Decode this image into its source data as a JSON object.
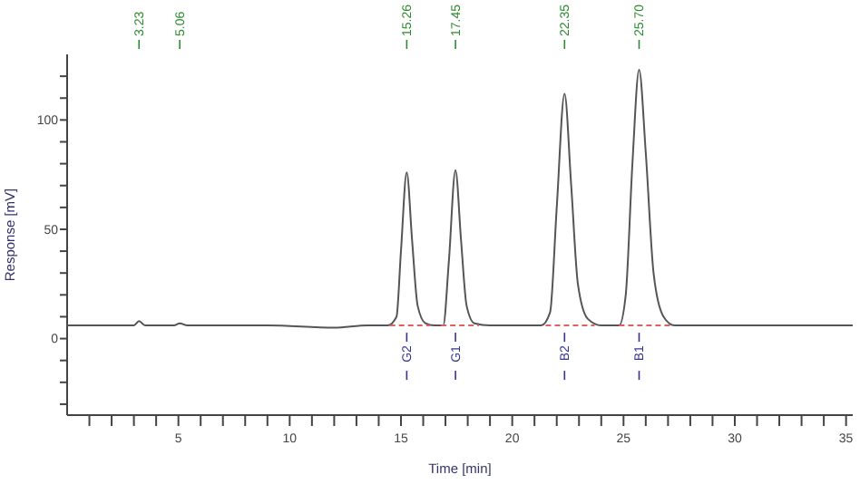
{
  "chart_data": {
    "type": "line",
    "xlabel": "Time [min]",
    "ylabel": "Response [mV]",
    "xlim": [
      0,
      35.3
    ],
    "ylim": [
      -35,
      130
    ],
    "xticks": [
      {
        "value": 1,
        "label": null
      },
      {
        "value": 2,
        "label": null
      },
      {
        "value": 3,
        "label": null
      },
      {
        "value": 4,
        "label": null
      },
      5,
      {
        "value": 6,
        "label": null
      },
      {
        "value": 7,
        "label": null
      },
      {
        "value": 8,
        "label": null
      },
      {
        "value": 9,
        "label": null
      },
      10,
      {
        "value": 11,
        "label": null
      },
      {
        "value": 12,
        "label": null
      },
      {
        "value": 13,
        "label": null
      },
      {
        "value": 14,
        "label": null
      },
      15,
      {
        "value": 16,
        "label": null
      },
      {
        "value": 17,
        "label": null
      },
      {
        "value": 18,
        "label": null
      },
      {
        "value": 19,
        "label": null
      },
      20,
      {
        "value": 21,
        "label": null
      },
      {
        "value": 22,
        "label": null
      },
      {
        "value": 23,
        "label": null
      },
      {
        "value": 24,
        "label": null
      },
      25,
      {
        "value": 26,
        "label": null
      },
      {
        "value": 27,
        "label": null
      },
      {
        "value": 28,
        "label": null
      },
      {
        "value": 29,
        "label": null
      },
      30,
      {
        "value": 31,
        "label": null
      },
      {
        "value": 32,
        "label": null
      },
      {
        "value": 33,
        "label": null
      },
      {
        "value": 34,
        "label": null
      },
      35
    ],
    "yticks": [
      {
        "value": -30,
        "label": null
      },
      {
        "value": -20,
        "label": null
      },
      {
        "value": -10,
        "label": null
      },
      0,
      {
        "value": 10,
        "label": null
      },
      {
        "value": 20,
        "label": null
      },
      {
        "value": 30,
        "label": null
      },
      {
        "value": 40,
        "label": null
      },
      50,
      {
        "value": 60,
        "label": null
      },
      {
        "value": 70,
        "label": null
      },
      {
        "value": 80,
        "label": null
      },
      {
        "value": 90,
        "label": null
      },
      100,
      {
        "value": 110,
        "label": null
      },
      {
        "value": 120,
        "label": null
      }
    ],
    "grid": false,
    "marker": "none",
    "line_style": "solid",
    "series": [
      {
        "color": "#555555",
        "x": [
          0,
          3.0,
          3.23,
          3.5,
          4.8,
          5.06,
          5.4,
          9,
          12,
          13.5,
          14.4,
          14.8,
          15.0,
          15.26,
          15.5,
          15.75,
          16.1,
          16.5,
          16.9,
          17.15,
          17.45,
          17.7,
          17.95,
          18.3,
          19,
          21.3,
          21.7,
          22.0,
          22.35,
          22.65,
          22.95,
          23.4,
          24.0,
          24.8,
          25.1,
          25.4,
          25.7,
          26.0,
          26.35,
          26.8,
          27.3,
          30,
          35.3
        ],
        "values": [
          6,
          6,
          8,
          6,
          6,
          7,
          6,
          6,
          5,
          6,
          6,
          10,
          40,
          76,
          45,
          15,
          7,
          6,
          6,
          35,
          77,
          45,
          15,
          7,
          6,
          6,
          12,
          60,
          112,
          70,
          25,
          9,
          6,
          6,
          20,
          80,
          123,
          85,
          30,
          10,
          6,
          6,
          6
        ]
      },
      {
        "color": "#e06060",
        "line_style": "dashed",
        "x": [
          14.5,
          16.3,
          16.4,
          16.8,
          18.5,
          18.6,
          21.5,
          23.7,
          23.8,
          24.8,
          27.2
        ],
        "values": [
          6,
          6,
          null,
          6,
          6,
          null,
          6,
          6,
          null,
          6,
          6
        ]
      }
    ],
    "x2lim": [
      0,
      35.3
    ],
    "x2ticks": [
      3.23,
      5.06,
      15.26,
      17.45,
      22.35,
      {
        "value": 25.7,
        "label": "25.70"
      }
    ],
    "annotations": [
      {
        "text": "G2",
        "x": 15.26,
        "y": 6
      },
      {
        "text": "G1",
        "x": 17.45,
        "y": 6
      },
      {
        "text": "B2",
        "x": 22.35,
        "y": 6
      },
      {
        "text": "B1",
        "x": 25.7,
        "y": 6
      }
    ]
  }
}
